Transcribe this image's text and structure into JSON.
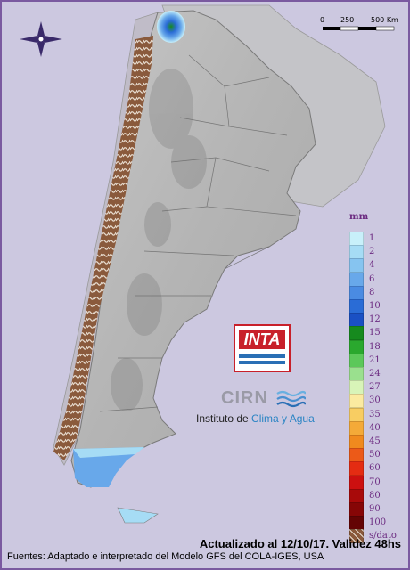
{
  "scale_bar": {
    "labels": [
      "0",
      "250",
      "500 Km"
    ]
  },
  "legend": {
    "unit": "mm",
    "items": [
      {
        "label": "1",
        "color": "#c8f0fa"
      },
      {
        "label": "2",
        "color": "#a6dcf5"
      },
      {
        "label": "4",
        "color": "#86c4f0"
      },
      {
        "label": "6",
        "color": "#68a8ea"
      },
      {
        "label": "8",
        "color": "#4a8be2"
      },
      {
        "label": "10",
        "color": "#2a6cd6"
      },
      {
        "label": "12",
        "color": "#1a50c4"
      },
      {
        "label": "15",
        "color": "#168a1e"
      },
      {
        "label": "18",
        "color": "#2aa82e"
      },
      {
        "label": "21",
        "color": "#5cc85a"
      },
      {
        "label": "24",
        "color": "#9ae08e"
      },
      {
        "label": "27",
        "color": "#d8f4b8"
      },
      {
        "label": "30",
        "color": "#fbeaa0"
      },
      {
        "label": "35",
        "color": "#f8cd62"
      },
      {
        "label": "40",
        "color": "#f4aa38"
      },
      {
        "label": "45",
        "color": "#f08a1e"
      },
      {
        "label": "50",
        "color": "#ec5a18"
      },
      {
        "label": "60",
        "color": "#e42c12"
      },
      {
        "label": "70",
        "color": "#cc1010"
      },
      {
        "label": "80",
        "color": "#a80a0a"
      },
      {
        "label": "90",
        "color": "#860606"
      },
      {
        "label": "100",
        "color": "#640404"
      },
      {
        "label": "s/dato",
        "color": "#8a5a3c"
      }
    ]
  },
  "logos": {
    "inta": "INTA",
    "cirn": "CIRN",
    "institute_prefix": "Instituto de ",
    "institute_accent": "Clima y Agua"
  },
  "footer": {
    "updated": "Actualizado al 12/10/17. Validez 48hs",
    "sources": "Fuentes: Adaptado e interpretado del Modelo GFS del COLA-IGES, USA"
  },
  "colors": {
    "background": "#ccc8e0",
    "land": "#bdbdbd",
    "no_data": "#8a5a3c",
    "accent_purple": "#6b2a80",
    "frame": "#7a5aa0"
  }
}
